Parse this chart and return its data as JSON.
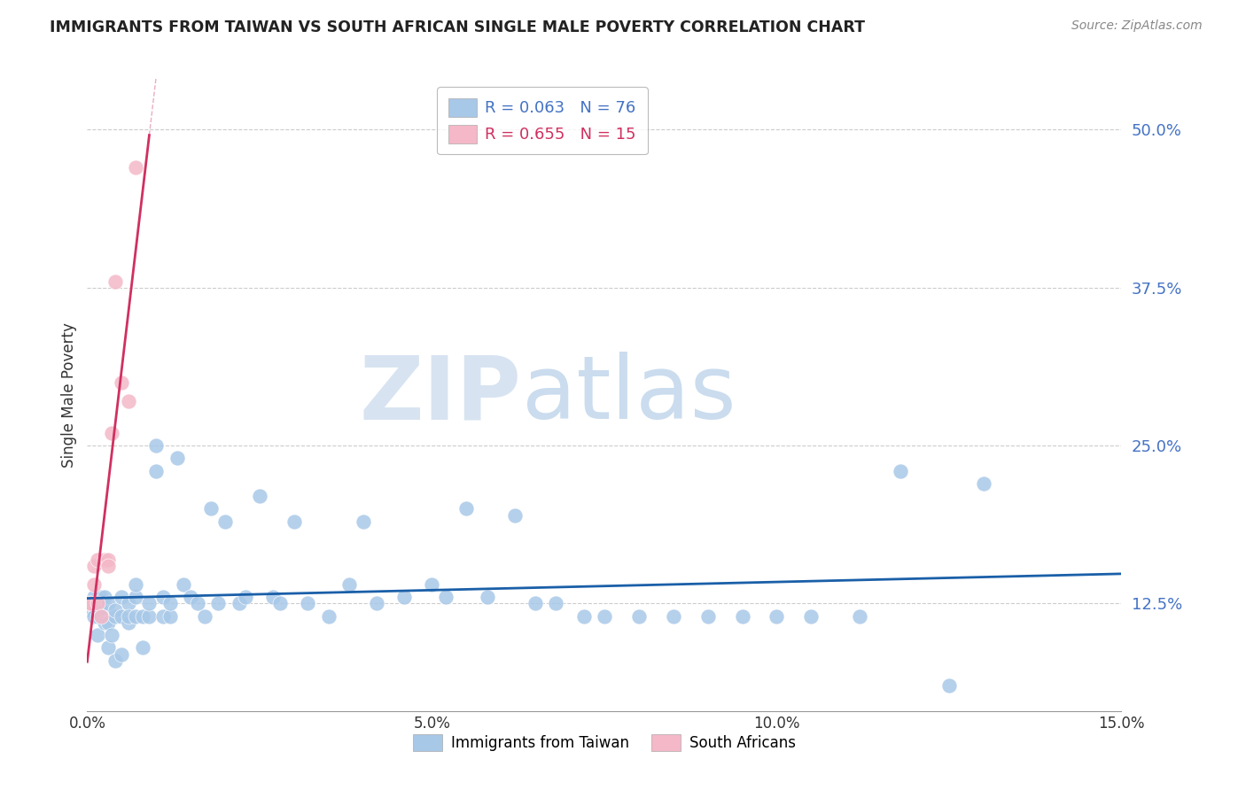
{
  "title": "IMMIGRANTS FROM TAIWAN VS SOUTH AFRICAN SINGLE MALE POVERTY CORRELATION CHART",
  "source": "Source: ZipAtlas.com",
  "ylabel": "Single Male Poverty",
  "legend_label_1": "Immigrants from Taiwan",
  "legend_label_2": "South Africans",
  "R1": 0.063,
  "N1": 76,
  "R2": 0.655,
  "N2": 15,
  "color1": "#a8c8e8",
  "color2": "#f4b8c8",
  "trend_color1": "#1a5fa8",
  "trend_color2": "#d03060",
  "watermark_zip": "ZIP",
  "watermark_atlas": "atlas",
  "xlim": [
    0.0,
    0.15
  ],
  "ylim": [
    0.04,
    0.54
  ],
  "yticks": [
    0.125,
    0.25,
    0.375,
    0.5
  ],
  "ytick_labels": [
    "12.5%",
    "25.0%",
    "37.5%",
    "50.0%"
  ],
  "xticks": [
    0.0,
    0.05,
    0.1,
    0.15
  ],
  "xtick_labels": [
    "0.0%",
    "5.0%",
    "10.0%",
    "15.0%"
  ],
  "taiwan_x": [
    0.0003,
    0.0005,
    0.001,
    0.001,
    0.0015,
    0.0015,
    0.002,
    0.002,
    0.002,
    0.0025,
    0.0025,
    0.003,
    0.003,
    0.003,
    0.0035,
    0.004,
    0.004,
    0.004,
    0.005,
    0.005,
    0.005,
    0.006,
    0.006,
    0.006,
    0.007,
    0.007,
    0.007,
    0.008,
    0.008,
    0.009,
    0.009,
    0.01,
    0.01,
    0.011,
    0.011,
    0.012,
    0.012,
    0.013,
    0.014,
    0.015,
    0.016,
    0.017,
    0.018,
    0.019,
    0.02,
    0.022,
    0.023,
    0.025,
    0.027,
    0.028,
    0.03,
    0.032,
    0.035,
    0.038,
    0.04,
    0.042,
    0.046,
    0.05,
    0.052,
    0.055,
    0.058,
    0.062,
    0.065,
    0.068,
    0.072,
    0.075,
    0.08,
    0.085,
    0.09,
    0.095,
    0.1,
    0.105,
    0.112,
    0.118,
    0.125,
    0.13
  ],
  "taiwan_y": [
    0.125,
    0.12,
    0.115,
    0.13,
    0.1,
    0.115,
    0.12,
    0.115,
    0.13,
    0.11,
    0.13,
    0.09,
    0.11,
    0.125,
    0.1,
    0.08,
    0.115,
    0.12,
    0.085,
    0.115,
    0.13,
    0.11,
    0.125,
    0.115,
    0.115,
    0.13,
    0.14,
    0.09,
    0.115,
    0.115,
    0.125,
    0.23,
    0.25,
    0.115,
    0.13,
    0.115,
    0.125,
    0.24,
    0.14,
    0.13,
    0.125,
    0.115,
    0.2,
    0.125,
    0.19,
    0.125,
    0.13,
    0.21,
    0.13,
    0.125,
    0.19,
    0.125,
    0.115,
    0.14,
    0.19,
    0.125,
    0.13,
    0.14,
    0.13,
    0.2,
    0.13,
    0.195,
    0.125,
    0.125,
    0.115,
    0.115,
    0.115,
    0.115,
    0.115,
    0.115,
    0.115,
    0.115,
    0.115,
    0.23,
    0.06,
    0.22
  ],
  "africa_x": [
    0.0002,
    0.0005,
    0.001,
    0.001,
    0.0015,
    0.0015,
    0.002,
    0.0025,
    0.003,
    0.003,
    0.0035,
    0.004,
    0.005,
    0.006,
    0.007
  ],
  "africa_y": [
    0.125,
    0.125,
    0.14,
    0.155,
    0.125,
    0.16,
    0.115,
    0.16,
    0.16,
    0.155,
    0.26,
    0.38,
    0.3,
    0.285,
    0.47
  ],
  "africa_trend_xmax": 0.009
}
